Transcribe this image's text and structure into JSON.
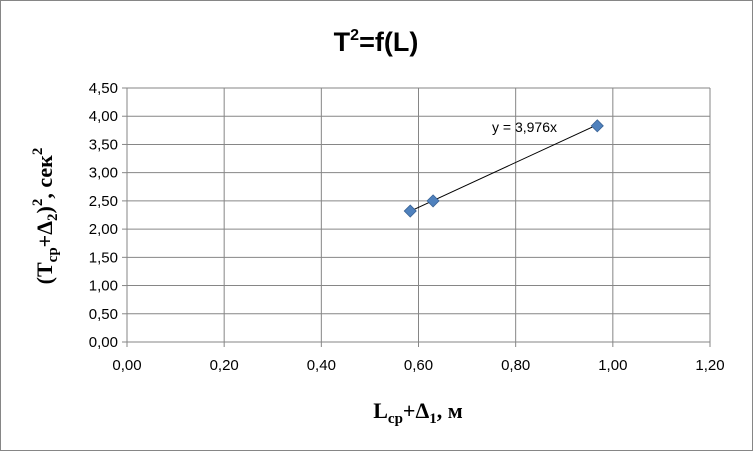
{
  "chart_data": {
    "type": "scatter",
    "title_main": "T",
    "title_sup": "2",
    "title_rest": "=f(L)",
    "xlabel": {
      "main": "L",
      "sub1": "ср",
      "plus": "+Δ",
      "sub2": "1",
      "unit": ", м"
    },
    "ylabel": {
      "open": "(T",
      "sub1": "ср",
      "plus": "+Δ",
      "sub2": "2",
      "close": ")",
      "sup": "2",
      "unit": ", сек",
      "unit_sup": "2"
    },
    "xlim": [
      0,
      1.2
    ],
    "ylim": [
      0,
      4.5
    ],
    "xticks": [
      "0,00",
      "0,20",
      "0,40",
      "0,60",
      "0,80",
      "1,00",
      "1,20"
    ],
    "yticks": [
      "0,00",
      "0,50",
      "1,00",
      "1,50",
      "2,00",
      "2,50",
      "3,00",
      "3,50",
      "4,00",
      "4,50"
    ],
    "grid": true,
    "series": [
      {
        "x": [
          0.583,
          0.63,
          0.968
        ],
        "y": [
          2.32,
          2.5,
          3.83
        ],
        "color": "#4f81bd"
      }
    ],
    "trendline": {
      "slope": 3.976,
      "x_range": [
        0.583,
        0.968
      ],
      "label": "y = 3,976x"
    }
  }
}
